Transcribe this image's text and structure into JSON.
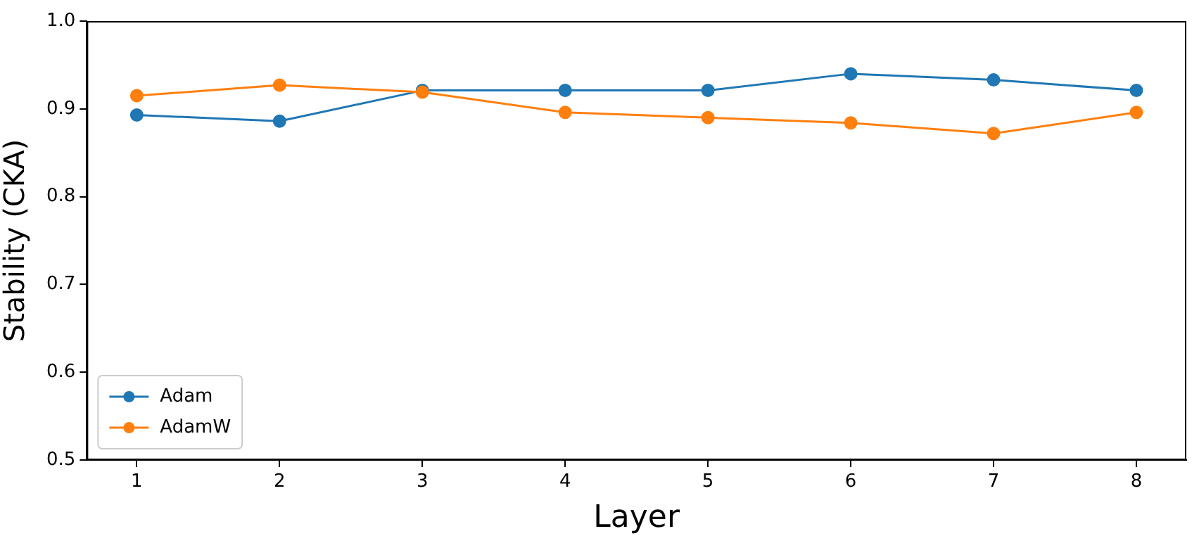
{
  "chart_data": {
    "type": "line",
    "xlabel": "Layer",
    "ylabel": "Stability (CKA)",
    "x": [
      1,
      2,
      3,
      4,
      5,
      6,
      7,
      8
    ],
    "series": [
      {
        "name": "Adam",
        "color": "#1f77b4",
        "values": [
          0.893,
          0.886,
          0.921,
          0.921,
          0.921,
          0.94,
          0.933,
          0.921
        ]
      },
      {
        "name": "AdamW",
        "color": "#ff7f0e",
        "values": [
          0.915,
          0.927,
          0.919,
          0.896,
          0.89,
          0.884,
          0.872,
          0.896
        ]
      }
    ],
    "xlim": [
      0.65,
      8.35
    ],
    "xticks": [
      1,
      2,
      3,
      4,
      5,
      6,
      7,
      8
    ],
    "ylim": [
      0.5,
      1.0
    ],
    "yticks": [
      {
        "value": 0.5,
        "label": "0.5"
      },
      {
        "value": 0.6,
        "label": "0.6"
      },
      {
        "value": 0.7,
        "label": "0.7"
      },
      {
        "value": 0.8,
        "label": "0.8"
      },
      {
        "value": 0.9,
        "label": "0.9"
      },
      {
        "value": 1.0,
        "label": "1.0"
      }
    ],
    "grid": false,
    "legend": "bottom left",
    "marker": "circle",
    "line_style": "solid"
  }
}
